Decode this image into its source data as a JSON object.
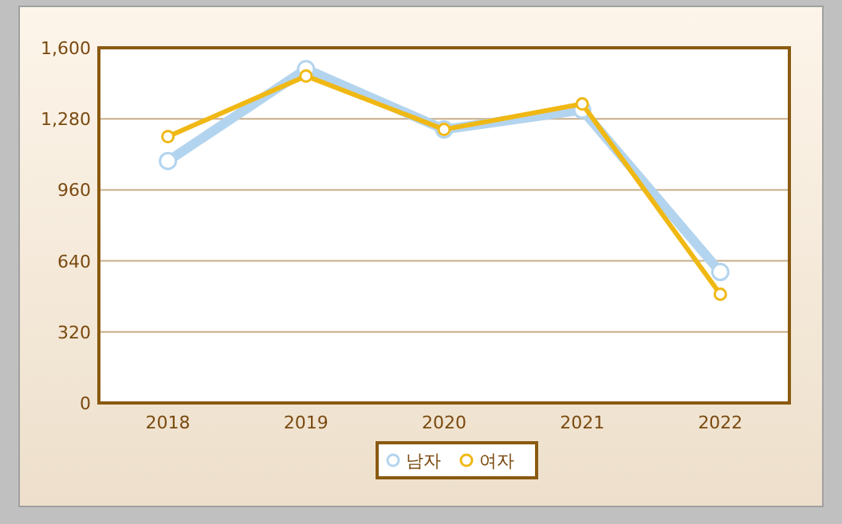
{
  "chart_data": {
    "type": "line",
    "categories": [
      "2018",
      "2019",
      "2020",
      "2021",
      "2022"
    ],
    "series": [
      {
        "name": "남자",
        "color": "#b3d4ee",
        "values": [
          1090,
          1504,
          1232,
          1320,
          590
        ]
      },
      {
        "name": "여자",
        "color": "#f0b814",
        "values": [
          1200,
          1473,
          1232,
          1347,
          490
        ]
      }
    ],
    "ylim": [
      0,
      1600
    ],
    "yticks": [
      0,
      {
        "value": 320,
        "label": "320"
      },
      {
        "value": 640,
        "label": "640"
      },
      {
        "value": 960,
        "label": "960"
      },
      {
        "value": 1280,
        "label": "1,280"
      },
      {
        "value": 1600,
        "label": "1,600"
      }
    ],
    "grid": "y",
    "legend": "bottom",
    "marker": "circle",
    "line_style": "solid"
  }
}
